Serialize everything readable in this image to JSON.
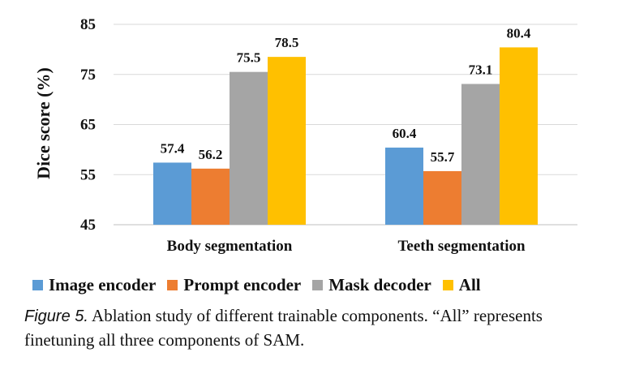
{
  "chart_data": {
    "type": "bar",
    "ylabel": "Dice score (%)",
    "ylim": [
      45,
      85
    ],
    "yticks": [
      45,
      55,
      65,
      75,
      85
    ],
    "grid": true,
    "legend_position": "bottom",
    "categories": [
      "Body segmentation",
      "Teeth segmentation"
    ],
    "series": [
      {
        "name": "Image encoder",
        "color": "#5b9bd5",
        "values": [
          57.4,
          60.4
        ]
      },
      {
        "name": "Prompt encoder",
        "color": "#ed7d31",
        "values": [
          56.2,
          55.7
        ]
      },
      {
        "name": "Mask decoder",
        "color": "#a5a5a5",
        "values": [
          75.5,
          73.1
        ]
      },
      {
        "name": "All",
        "color": "#ffc000",
        "values": [
          78.5,
          80.4
        ]
      }
    ]
  },
  "caption": {
    "figure_label": "Figure 5.",
    "text": " Ablation study of different trainable components. “All” represents finetuning all three components of SAM."
  }
}
